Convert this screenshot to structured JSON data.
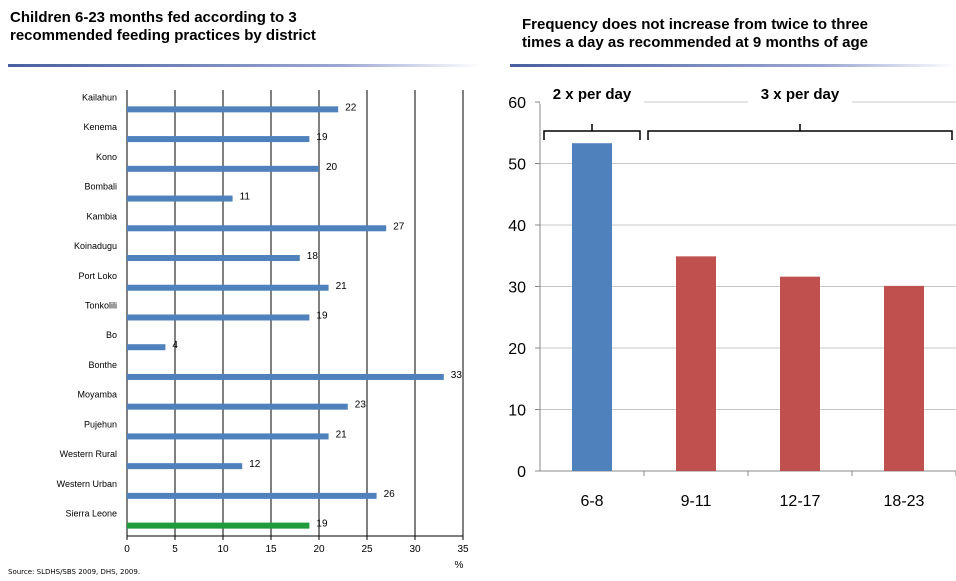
{
  "left_title_line1": "Children 6-23 months fed according to 3",
  "left_title_line2": "recommended feeding practices by district",
  "right_title_line1": "Frequency does not increase from twice to three",
  "right_title_line2": "times a day as recommended at 9 months of age",
  "source": "Source: SLDHS/SBS 2009, DHS, 2009.",
  "chart_data": [
    {
      "type": "bar",
      "orientation": "horizontal",
      "title": "Children 6-23 months fed according to 3 recommended feeding practices by district",
      "categories": [
        "Kailahun",
        "Kenema",
        "Kono",
        "Bombali",
        "Kambia",
        "Koinadugu",
        "Port Loko",
        "Tonkolili",
        "Bo",
        "Bonthe",
        "Moyamba",
        "Pujehun",
        "Western Rural",
        "Western Urban",
        "Sierra Leone"
      ],
      "values": [
        22,
        19,
        20,
        11,
        27,
        18,
        21,
        19,
        4,
        33,
        23,
        21,
        12,
        26,
        19
      ],
      "xlim": [
        0,
        35
      ],
      "xticks": [
        0,
        5,
        10,
        15,
        20,
        25,
        30,
        35
      ],
      "xlabel": "%",
      "grid": "vertical",
      "colors": {
        "default": "#4f81bd",
        "highlight": "#1f9b3c"
      },
      "highlight_category": "Sierra Leone"
    },
    {
      "type": "bar",
      "orientation": "vertical",
      "title": "Frequency does not increase from twice to three times a day as recommended at 9 months of age",
      "categories": [
        "6-8",
        "9-11",
        "12-17",
        "18-23"
      ],
      "values": [
        53.3,
        34.9,
        31.6,
        30.1
      ],
      "ylim": [
        0,
        60
      ],
      "yticks": [
        0,
        10,
        20,
        30,
        40,
        50,
        60
      ],
      "grid": "horizontal",
      "colors": [
        "#4f81bd",
        "#c0504d",
        "#c0504d",
        "#c0504d"
      ],
      "annotations": [
        {
          "text": "2 x per day",
          "categories": [
            "6-8"
          ]
        },
        {
          "text": "3 x per day",
          "categories": [
            "9-11",
            "12-17",
            "18-23"
          ]
        }
      ]
    }
  ]
}
